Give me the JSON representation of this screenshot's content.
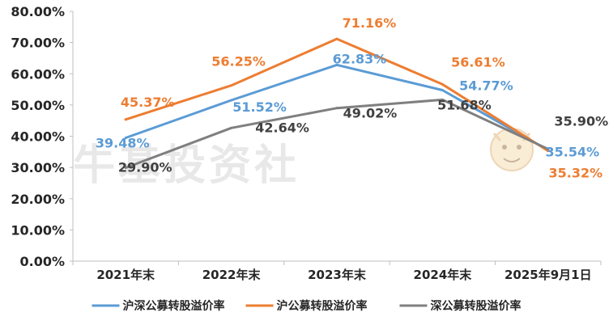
{
  "chart_data": {
    "type": "line",
    "categories": [
      "2021年末",
      "2022年末",
      "2023年末",
      "2024年末",
      "2025年9月1日"
    ],
    "ylim": [
      0,
      80
    ],
    "yticks": [
      0,
      10,
      20,
      30,
      40,
      50,
      60,
      70,
      80
    ],
    "ytick_labels": [
      "0.00%",
      "10.00%",
      "20.00%",
      "30.00%",
      "40.00%",
      "50.00%",
      "60.00%",
      "70.00%",
      "80.00%"
    ],
    "grid": false,
    "legend_position": "bottom",
    "series": [
      {
        "name": "沪深公募转股溢价率",
        "color": "#5B9BD5",
        "values": [
          39.48,
          51.52,
          62.83,
          54.77,
          35.54
        ],
        "labels": [
          "39.48%",
          "51.52%",
          "62.83%",
          "54.77%",
          "35.54%"
        ]
      },
      {
        "name": "沪公募转股溢价率",
        "color": "#ED7D31",
        "values": [
          45.37,
          56.25,
          71.16,
          56.61,
          35.32
        ],
        "labels": [
          "45.37%",
          "56.25%",
          "71.16%",
          "56.61%",
          "35.32%"
        ]
      },
      {
        "name": "深公募转股溢价率",
        "color": "#7F7F7F",
        "values": [
          29.9,
          42.64,
          49.02,
          51.68,
          35.9
        ],
        "labels": [
          "29.90%",
          "42.64%",
          "49.02%",
          "51.68%",
          "35.90%"
        ]
      }
    ]
  },
  "watermark": {
    "text": "牛基投资社"
  }
}
